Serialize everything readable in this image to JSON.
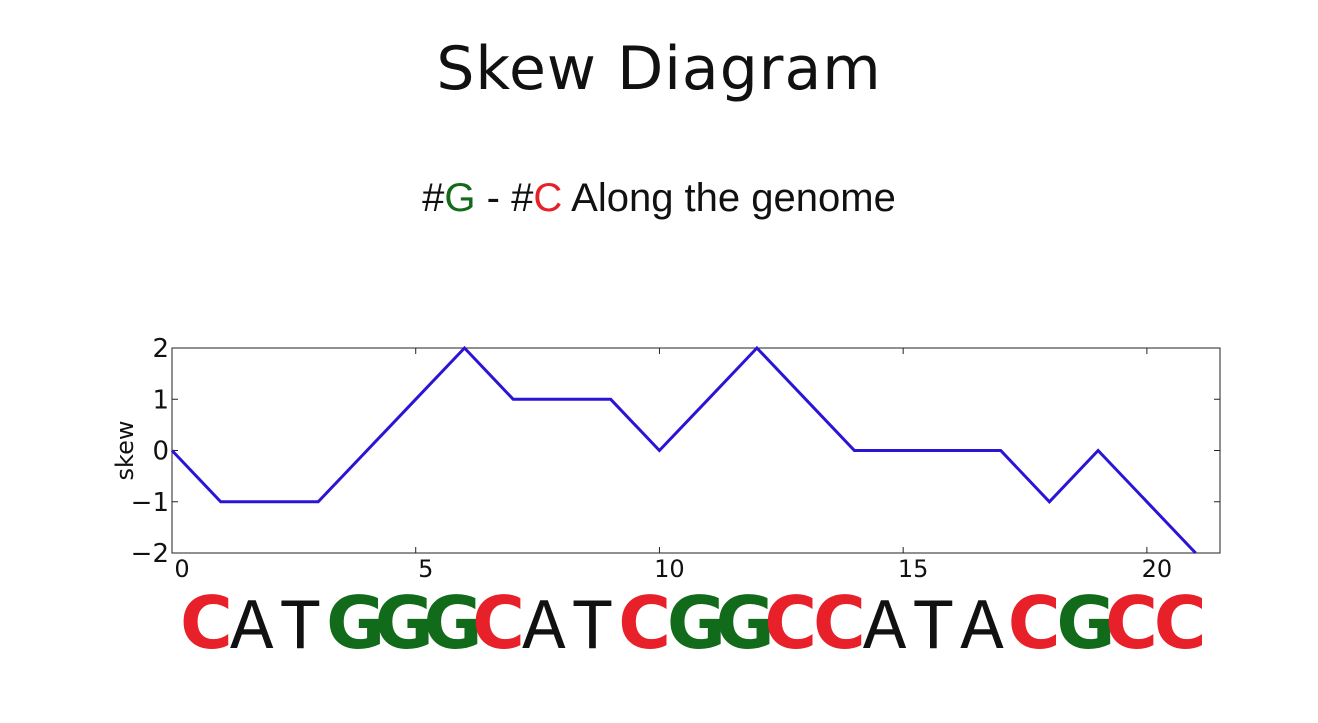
{
  "slide": {
    "title": "Skew Diagram",
    "subtitle": {
      "hash_g": "#",
      "g": "G",
      "sep": " - #",
      "c": "C",
      "rest": " Along the genome"
    }
  },
  "colors": {
    "g": "#116b1a",
    "c": "#e8202a",
    "line": "#2a14d6",
    "text": "#111111"
  },
  "chart_data": {
    "type": "line",
    "ylabel": "skew",
    "xlabel": "",
    "xlim": [
      0,
      21.5
    ],
    "ylim": [
      -2,
      2
    ],
    "xticks": [
      0,
      5,
      10,
      15,
      20
    ],
    "yticks": [
      2,
      1,
      0,
      -1,
      -2
    ],
    "ytick_labels": [
      "2",
      "1",
      "0",
      "−1",
      "−2"
    ],
    "grid": false,
    "series": [
      {
        "x": [
          0,
          1,
          2,
          3,
          4,
          5,
          6,
          7,
          8,
          9,
          10,
          11,
          12,
          13,
          14,
          15,
          16,
          17,
          18,
          19,
          20,
          21
        ],
        "values": [
          0,
          -1,
          -1,
          -1,
          0,
          1,
          2,
          1,
          1,
          1,
          0,
          1,
          2,
          1,
          0,
          0,
          0,
          0,
          -1,
          0,
          -1,
          -2
        ]
      }
    ]
  },
  "sequence": [
    "C",
    "A",
    "T",
    "G",
    "G",
    "G",
    "C",
    "A",
    "T",
    "C",
    "G",
    "G",
    "C",
    "C",
    "A",
    "T",
    "A",
    "C",
    "G",
    "C",
    "C"
  ]
}
